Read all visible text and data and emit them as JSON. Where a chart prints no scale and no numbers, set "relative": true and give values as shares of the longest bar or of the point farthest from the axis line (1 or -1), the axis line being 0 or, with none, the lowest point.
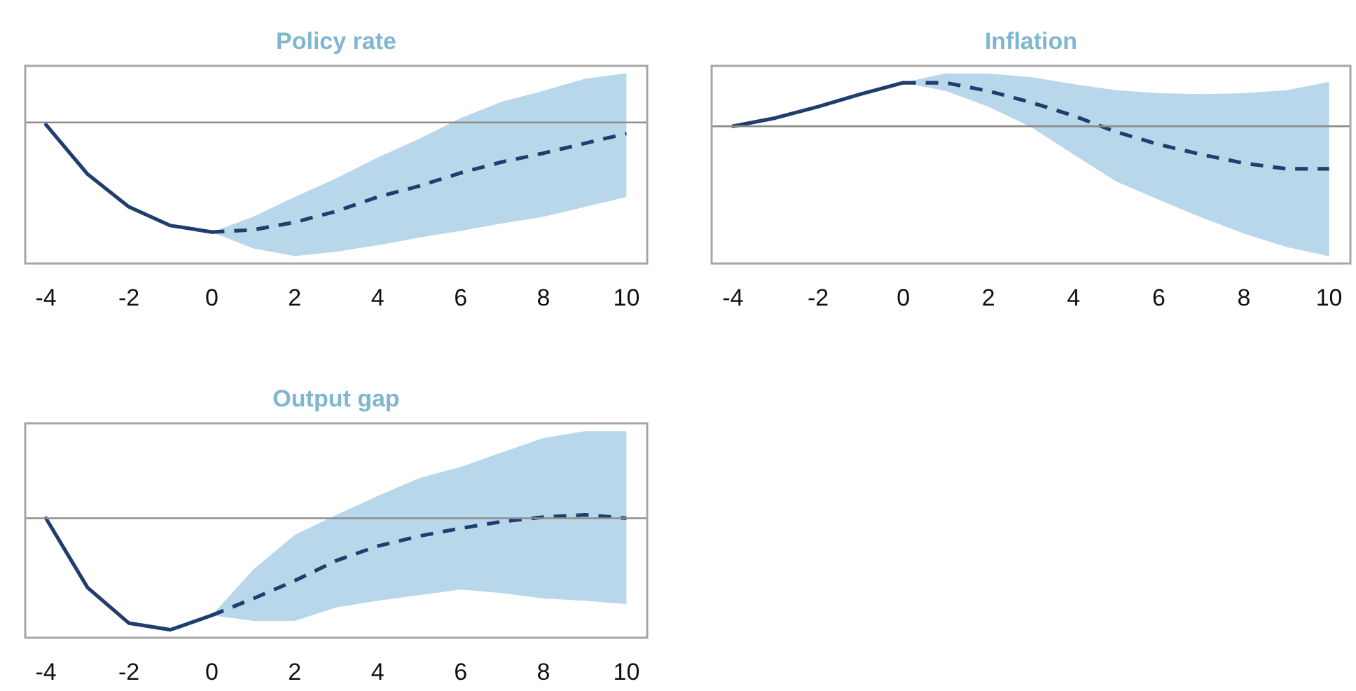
{
  "chart_data": [
    {
      "type": "line",
      "title": "Policy rate",
      "relative": true,
      "xlim": [
        -4.5,
        10.5
      ],
      "xticks": [
        -4,
        -2,
        0,
        2,
        4,
        6,
        8,
        10
      ],
      "tick_labels": "x",
      "series": [
        {
          "color": "#1f3e6e",
          "line_style": "solid",
          "x": [
            -4,
            -3,
            -2,
            -1,
            0
          ],
          "values": [
            -0.02,
            -0.47,
            -0.77,
            -0.94,
            -1
          ]
        },
        {
          "color": "#1f3e6e",
          "line_style": "dashed",
          "x": [
            0,
            1,
            2,
            3,
            4,
            5,
            6,
            7,
            8,
            9,
            10
          ],
          "values": [
            -1,
            -0.98,
            -0.91,
            -0.81,
            -0.68,
            -0.58,
            -0.46,
            -0.36,
            -0.28,
            -0.19,
            -0.1
          ],
          "upper": [
            -1,
            -0.86,
            -0.68,
            -0.51,
            -0.32,
            -0.15,
            0.04,
            0.19,
            0.29,
            0.4,
            0.45
          ],
          "lower": [
            -1,
            -1.15,
            -1.22,
            -1.18,
            -1.12,
            -1.05,
            -0.99,
            -0.92,
            -0.86,
            -0.77,
            -0.68
          ]
        }
      ]
    },
    {
      "type": "line",
      "title": "Inflation",
      "relative": true,
      "xlim": [
        -4.5,
        10.5
      ],
      "xticks": [
        -4,
        -2,
        0,
        2,
        4,
        6,
        8,
        10
      ],
      "tick_labels": "x",
      "series": [
        {
          "color": "#1f3e6e",
          "line_style": "solid",
          "x": [
            -4,
            -3,
            -2,
            -1,
            0
          ],
          "values": [
            0,
            0.19,
            0.45,
            0.74,
            1
          ]
        },
        {
          "color": "#1f3e6e",
          "line_style": "dashed",
          "x": [
            0,
            1,
            2,
            3,
            4,
            5,
            6,
            7,
            8,
            9,
            10
          ],
          "values": [
            1,
            1,
            0.81,
            0.55,
            0.24,
            -0.13,
            -0.42,
            -0.65,
            -0.85,
            -0.98,
            -0.98
          ],
          "upper": [
            1,
            1.22,
            1.21,
            1.13,
            0.97,
            0.83,
            0.76,
            0.74,
            0.76,
            0.83,
            1.02
          ],
          "lower": [
            1,
            0.81,
            0.45,
            -0.02,
            -0.65,
            -1.27,
            -1.69,
            -2.1,
            -2.47,
            -2.78,
            -2.99
          ]
        }
      ]
    },
    {
      "type": "line",
      "title": "Output gap",
      "relative": true,
      "xlim": [
        -4.5,
        10.5
      ],
      "xticks": [
        -4,
        -2,
        0,
        2,
        4,
        6,
        8,
        10
      ],
      "tick_labels": "x",
      "series": [
        {
          "color": "#1f3e6e",
          "line_style": "solid",
          "x": [
            -4,
            -3,
            -2,
            -1,
            0
          ],
          "values": [
            0,
            -0.62,
            -0.94,
            -1,
            -0.87
          ]
        },
        {
          "color": "#1f3e6e",
          "line_style": "dashed",
          "x": [
            0,
            1,
            2,
            3,
            4,
            5,
            6,
            7,
            8,
            9,
            10
          ],
          "values": [
            -0.87,
            -0.72,
            -0.56,
            -0.38,
            -0.25,
            -0.16,
            -0.09,
            -0.03,
            0.01,
            0.03,
            0
          ],
          "upper": [
            -0.87,
            -0.46,
            -0.15,
            0.03,
            0.2,
            0.36,
            0.46,
            0.59,
            0.72,
            0.78,
            0.78
          ],
          "lower": [
            -0.87,
            -0.92,
            -0.92,
            -0.8,
            -0.74,
            -0.69,
            -0.64,
            -0.67,
            -0.72,
            -0.74,
            -0.77
          ]
        }
      ]
    }
  ]
}
